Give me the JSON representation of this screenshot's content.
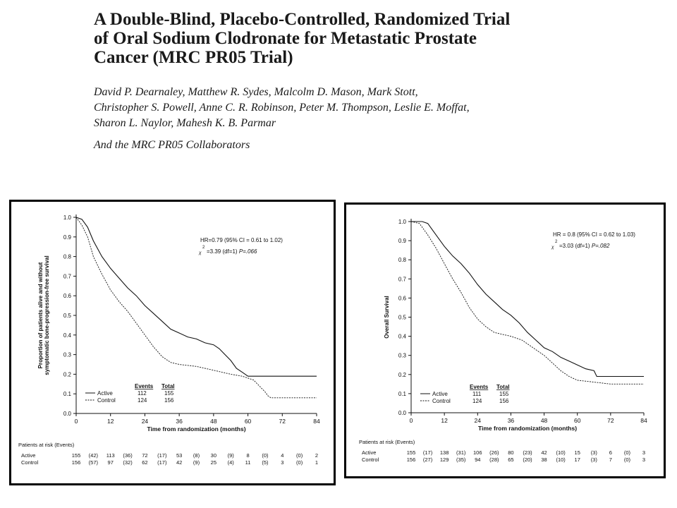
{
  "header": {
    "title_lines": [
      "A Double-Blind, Placebo-Controlled, Randomized Trial",
      "of Oral Sodium Clodronate for Metastatic Prostate",
      "Cancer (MRC PR05 Trial)"
    ],
    "author_lines": [
      "David P. Dearnaley, Matthew R. Sydes, Malcolm D. Mason, Mark Stott,",
      "Christopher S. Powell, Anne C. R. Robinson, Peter M. Thompson, Leslie E. Moffat,",
      "Sharon L. Naylor, Mahesh K. B. Parmar"
    ],
    "collaborators": "And the MRC PR05 Collaborators"
  },
  "colors": {
    "line": "#111111",
    "border": "#000000"
  },
  "chart_data": [
    {
      "type": "line",
      "xlabel": "Time from randomization (months)",
      "ylabel_lines": [
        "Proportion of patients alive and without",
        "symptomatic bone-progression-free survival"
      ],
      "xlim": [
        0,
        84
      ],
      "ylim": [
        0,
        1
      ],
      "xticks": [
        0,
        12,
        24,
        36,
        48,
        60,
        72,
        84
      ],
      "yticks": [
        "0.0",
        "0.1",
        "0.2",
        "0.3",
        "0.4",
        "0.5",
        "0.6",
        "0.7",
        "0.8",
        "0.9",
        "1.0"
      ],
      "hr_text": "HR=0.79 (95% CI = 0.61 to 1.02)",
      "chi_text": "=3.39 (df=1) ",
      "p_text": "P=.066",
      "legend_headers": [
        "Events",
        "Total"
      ],
      "series": [
        {
          "name": "Active",
          "style": "solid",
          "events": "112",
          "total": "155",
          "points": [
            [
              0,
              1.0
            ],
            [
              2,
              0.99
            ],
            [
              4,
              0.95
            ],
            [
              6,
              0.88
            ],
            [
              9,
              0.8
            ],
            [
              12,
              0.74
            ],
            [
              15,
              0.69
            ],
            [
              18,
              0.64
            ],
            [
              21,
              0.6
            ],
            [
              24,
              0.55
            ],
            [
              27,
              0.51
            ],
            [
              30,
              0.47
            ],
            [
              33,
              0.43
            ],
            [
              36,
              0.41
            ],
            [
              39,
              0.39
            ],
            [
              42,
              0.38
            ],
            [
              45,
              0.36
            ],
            [
              48,
              0.35
            ],
            [
              50,
              0.33
            ],
            [
              52,
              0.3
            ],
            [
              54,
              0.27
            ],
            [
              56,
              0.23
            ],
            [
              58,
              0.21
            ],
            [
              60,
              0.19
            ],
            [
              66,
              0.19
            ],
            [
              72,
              0.19
            ],
            [
              84,
              0.19
            ]
          ]
        },
        {
          "name": "Control",
          "style": "dashed",
          "events": "124",
          "total": "156",
          "points": [
            [
              0,
              1.0
            ],
            [
              2,
              0.96
            ],
            [
              4,
              0.9
            ],
            [
              6,
              0.8
            ],
            [
              9,
              0.71
            ],
            [
              12,
              0.63
            ],
            [
              15,
              0.57
            ],
            [
              18,
              0.52
            ],
            [
              21,
              0.46
            ],
            [
              24,
              0.4
            ],
            [
              27,
              0.34
            ],
            [
              30,
              0.29
            ],
            [
              33,
              0.26
            ],
            [
              36,
              0.25
            ],
            [
              42,
              0.24
            ],
            [
              48,
              0.22
            ],
            [
              54,
              0.2
            ],
            [
              58,
              0.19
            ],
            [
              62,
              0.17
            ],
            [
              64,
              0.14
            ],
            [
              66,
              0.11
            ],
            [
              67,
              0.09
            ],
            [
              68,
              0.08
            ],
            [
              72,
              0.08
            ],
            [
              84,
              0.08
            ]
          ]
        }
      ],
      "risk_table": {
        "title": "Patients at risk (Events)",
        "rows": [
          {
            "label": "Active",
            "values": [
              "155",
              "(42)",
              "113",
              "(36)",
              "72",
              "(17)",
              "53",
              "(8)",
              "30",
              "(9)",
              "8",
              "(0)",
              "4",
              "(0)",
              "2"
            ]
          },
          {
            "label": "Control",
            "values": [
              "156",
              "(57)",
              "97",
              "(32)",
              "62",
              "(17)",
              "42",
              "(9)",
              "25",
              "(4)",
              "11",
              "(5)",
              "3",
              "(0)",
              "1"
            ]
          }
        ]
      }
    },
    {
      "type": "line",
      "xlabel": "Time from randomization (months)",
      "ylabel_lines": [
        "Overall Survival"
      ],
      "xlim": [
        0,
        84
      ],
      "ylim": [
        0,
        1
      ],
      "xticks": [
        0,
        12,
        24,
        36,
        48,
        60,
        72,
        84
      ],
      "yticks": [
        "0.0",
        "0.1",
        "0.2",
        "0.3",
        "0.4",
        "0.5",
        "0.6",
        "0.7",
        "0.8",
        "0.9",
        "1.0"
      ],
      "hr_text": "HR = 0.8 (95% CI = 0.62 to 1.03)",
      "chi_text": "=3.03 (df=1) ",
      "p_text": "P=.082",
      "legend_headers": [
        "Events",
        "Total"
      ],
      "series": [
        {
          "name": "Active",
          "style": "solid",
          "events": "111",
          "total": "155",
          "points": [
            [
              0,
              1.0
            ],
            [
              4,
              1.0
            ],
            [
              6,
              0.99
            ],
            [
              8,
              0.95
            ],
            [
              10,
              0.91
            ],
            [
              12,
              0.87
            ],
            [
              15,
              0.82
            ],
            [
              18,
              0.78
            ],
            [
              21,
              0.73
            ],
            [
              24,
              0.67
            ],
            [
              27,
              0.62
            ],
            [
              30,
              0.58
            ],
            [
              33,
              0.54
            ],
            [
              36,
              0.51
            ],
            [
              39,
              0.47
            ],
            [
              42,
              0.42
            ],
            [
              45,
              0.38
            ],
            [
              48,
              0.34
            ],
            [
              51,
              0.32
            ],
            [
              54,
              0.29
            ],
            [
              57,
              0.27
            ],
            [
              60,
              0.25
            ],
            [
              63,
              0.23
            ],
            [
              66,
              0.22
            ],
            [
              67,
              0.19
            ],
            [
              72,
              0.19
            ],
            [
              84,
              0.19
            ]
          ]
        },
        {
          "name": "Control",
          "style": "dashed",
          "events": "124",
          "total": "156",
          "points": [
            [
              0,
              1.0
            ],
            [
              3,
              0.99
            ],
            [
              6,
              0.93
            ],
            [
              9,
              0.86
            ],
            [
              12,
              0.78
            ],
            [
              15,
              0.7
            ],
            [
              18,
              0.63
            ],
            [
              21,
              0.55
            ],
            [
              24,
              0.49
            ],
            [
              27,
              0.45
            ],
            [
              30,
              0.42
            ],
            [
              33,
              0.41
            ],
            [
              36,
              0.4
            ],
            [
              40,
              0.38
            ],
            [
              44,
              0.34
            ],
            [
              48,
              0.3
            ],
            [
              51,
              0.26
            ],
            [
              54,
              0.22
            ],
            [
              57,
              0.19
            ],
            [
              60,
              0.17
            ],
            [
              66,
              0.16
            ],
            [
              72,
              0.15
            ],
            [
              84,
              0.15
            ]
          ]
        }
      ],
      "risk_table": {
        "title": "Patients at risk (Events)",
        "rows": [
          {
            "label": "Active",
            "values": [
              "155",
              "(17)",
              "138",
              "(31)",
              "106",
              "(26)",
              "80",
              "(23)",
              "42",
              "(10)",
              "15",
              "(3)",
              "6",
              "(0)",
              "3"
            ]
          },
          {
            "label": "Control",
            "values": [
              "156",
              "(27)",
              "129",
              "(35)",
              "94",
              "(28)",
              "65",
              "(20)",
              "38",
              "(10)",
              "17",
              "(3)",
              "7",
              "(0)",
              "3"
            ]
          }
        ]
      }
    }
  ]
}
